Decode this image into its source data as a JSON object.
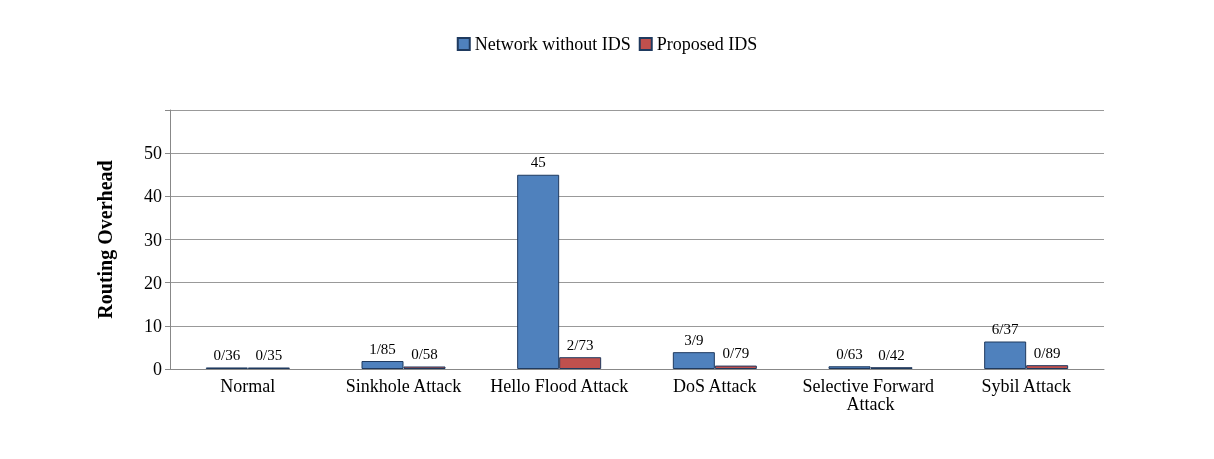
{
  "chart_data": {
    "type": "bar",
    "ylabel": "Routing Overhead",
    "categories": [
      "Normal",
      "Sinkhole Attack",
      "Hello Flood Attack",
      "DoS Attack",
      "Selective Forward Attack",
      "Sybil Attack"
    ],
    "series": [
      {
        "name": "Network without IDS",
        "color": "#4f81bd",
        "values": [
          0.36,
          1.85,
          45,
          3.9,
          0.63,
          6.37
        ],
        "value_labels": [
          "0/36",
          "1/85",
          "45",
          "3/9",
          "0/63",
          "6/37"
        ]
      },
      {
        "name": "Proposed IDS",
        "color": "#c0504d",
        "values": [
          0.35,
          0.58,
          2.73,
          0.79,
          0.42,
          0.89
        ],
        "value_labels": [
          "0/35",
          "0/58",
          "2/73",
          "0/79",
          "0/42",
          "0/89"
        ]
      }
    ],
    "ylim": [
      0,
      60
    ],
    "yticks": [
      0,
      10,
      20,
      30,
      40,
      50,
      {
        "value": 60,
        "label": null
      }
    ],
    "grid": "y",
    "legend": "top"
  }
}
